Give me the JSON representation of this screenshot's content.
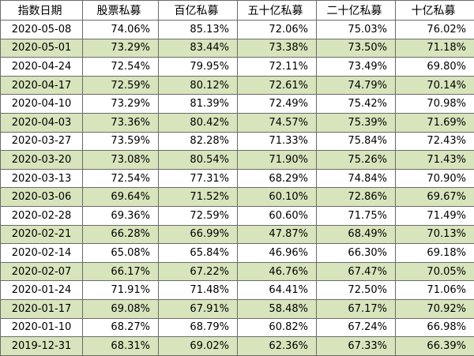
{
  "table": {
    "header": [
      "指数日期",
      "股票私募",
      "百亿私募",
      "五十亿私募",
      "二十亿私募",
      "十亿私募"
    ],
    "rows": [
      [
        "2020-05-08",
        "74.06%",
        "85.13%",
        "72.06%",
        "75.03%",
        "76.02%"
      ],
      [
        "2020-05-01",
        "73.29%",
        "83.44%",
        "73.38%",
        "73.50%",
        "71.18%"
      ],
      [
        "2020-04-24",
        "72.54%",
        "79.95%",
        "72.11%",
        "73.49%",
        "69.80%"
      ],
      [
        "2020-04-17",
        "72.59%",
        "80.12%",
        "72.61%",
        "74.79%",
        "70.14%"
      ],
      [
        "2020-04-10",
        "73.29%",
        "81.39%",
        "72.49%",
        "75.42%",
        "70.98%"
      ],
      [
        "2020-04-03",
        "73.36%",
        "80.42%",
        "74.57%",
        "75.39%",
        "71.69%"
      ],
      [
        "2020-03-27",
        "73.59%",
        "82.28%",
        "71.33%",
        "75.84%",
        "72.43%"
      ],
      [
        "2020-03-20",
        "73.08%",
        "80.54%",
        "71.90%",
        "75.26%",
        "71.43%"
      ],
      [
        "2020-03-13",
        "72.54%",
        "77.31%",
        "68.29%",
        "74.84%",
        "70.90%"
      ],
      [
        "2020-03-06",
        "69.64%",
        "71.52%",
        "60.10%",
        "72.86%",
        "69.67%"
      ],
      [
        "2020-02-28",
        "69.36%",
        "72.59%",
        "60.60%",
        "71.75%",
        "71.49%"
      ],
      [
        "2020-02-21",
        "66.28%",
        "66.99%",
        "47.87%",
        "68.49%",
        "70.13%"
      ],
      [
        "2020-02-14",
        "65.08%",
        "65.84%",
        "46.96%",
        "66.30%",
        "69.18%"
      ],
      [
        "2020-02-07",
        "66.17%",
        "67.22%",
        "46.76%",
        "67.47%",
        "70.05%"
      ],
      [
        "2020-01-24",
        "71.91%",
        "71.48%",
        "64.41%",
        "72.50%",
        "71.06%"
      ],
      [
        "2020-01-17",
        "69.08%",
        "67.91%",
        "58.48%",
        "67.17%",
        "70.92%"
      ],
      [
        "2020-01-10",
        "68.27%",
        "68.79%",
        "60.82%",
        "67.24%",
        "66.98%"
      ],
      [
        "2019-12-31",
        "68.31%",
        "69.02%",
        "62.36%",
        "67.33%",
        "66.39%"
      ]
    ]
  }
}
